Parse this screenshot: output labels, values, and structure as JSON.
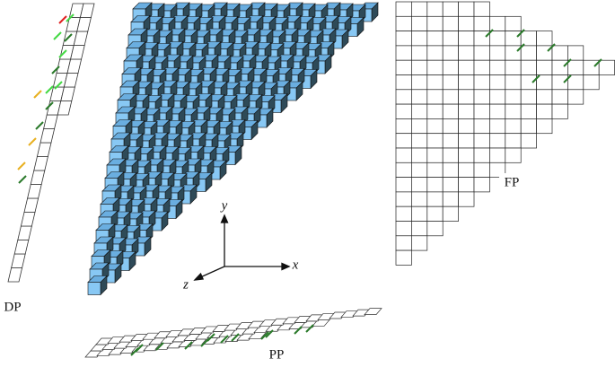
{
  "labels": {
    "dp": "DP",
    "fp": "FP",
    "pp": "PP",
    "axis_x": "x",
    "axis_y": "y",
    "axis_z": "z"
  }
}
